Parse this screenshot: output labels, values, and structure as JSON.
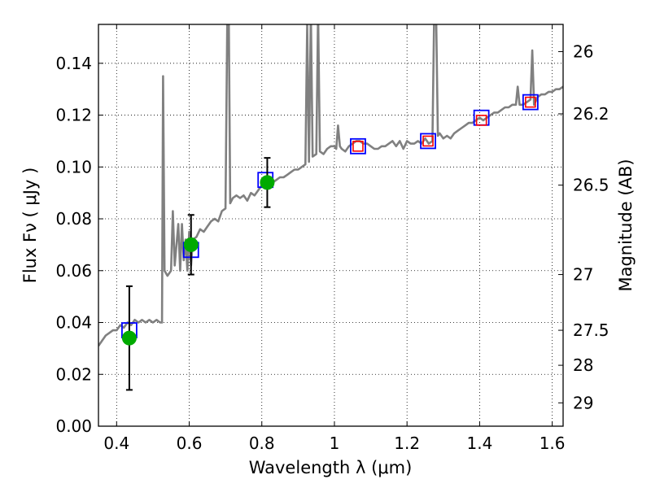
{
  "chart_data": {
    "type": "line",
    "xlabel": "Wavelength  λ (μm)",
    "ylabel": "Flux  Fν  ( μJy )",
    "y2label": "Magnitude (AB)",
    "xlim": [
      0.35,
      1.63
    ],
    "ylim": [
      0.0,
      0.155
    ],
    "grid": true,
    "x_ticks": [
      0.4,
      0.6,
      0.8,
      1.0,
      1.2,
      1.4,
      1.6
    ],
    "x_tick_labels": [
      "0.4",
      "0.6",
      "0.8",
      "1",
      "1.2",
      "1.4",
      "1.6"
    ],
    "y_ticks": [
      0.0,
      0.02,
      0.04,
      0.06,
      0.08,
      0.1,
      0.12,
      0.14
    ],
    "y_tick_labels": [
      "0.00",
      "0.02",
      "0.04",
      "0.06",
      "0.08",
      "0.10",
      "0.12",
      "0.14"
    ],
    "right_ticks": [
      {
        "flux": 0.1445,
        "label": "26"
      },
      {
        "flux": 0.1205,
        "label": "26.2"
      },
      {
        "flux": 0.093,
        "label": "26.5"
      },
      {
        "flux": 0.0585,
        "label": "27"
      },
      {
        "flux": 0.037,
        "label": "27.5"
      },
      {
        "flux": 0.0235,
        "label": "28"
      },
      {
        "flux": 0.009,
        "label": "29"
      }
    ],
    "series": [
      {
        "kind": "spectrum",
        "color": "#808080",
        "points": [
          [
            0.35,
            0.031
          ],
          [
            0.36,
            0.033
          ],
          [
            0.37,
            0.035
          ],
          [
            0.38,
            0.036
          ],
          [
            0.39,
            0.037
          ],
          [
            0.4,
            0.037
          ],
          [
            0.41,
            0.039
          ],
          [
            0.42,
            0.038
          ],
          [
            0.43,
            0.04
          ],
          [
            0.44,
            0.039
          ],
          [
            0.45,
            0.041
          ],
          [
            0.46,
            0.04
          ],
          [
            0.47,
            0.041
          ],
          [
            0.48,
            0.04
          ],
          [
            0.49,
            0.041
          ],
          [
            0.5,
            0.04
          ],
          [
            0.51,
            0.041
          ],
          [
            0.52,
            0.04
          ],
          [
            0.525,
            0.04
          ],
          [
            0.528,
            0.135
          ],
          [
            0.532,
            0.06
          ],
          [
            0.54,
            0.058
          ],
          [
            0.55,
            0.06
          ],
          [
            0.555,
            0.083
          ],
          [
            0.56,
            0.062
          ],
          [
            0.57,
            0.078
          ],
          [
            0.575,
            0.06
          ],
          [
            0.58,
            0.078
          ],
          [
            0.585,
            0.064
          ],
          [
            0.59,
            0.072
          ],
          [
            0.595,
            0.06
          ],
          [
            0.6,
            0.075
          ],
          [
            0.605,
            0.062
          ],
          [
            0.61,
            0.072
          ],
          [
            0.62,
            0.073
          ],
          [
            0.63,
            0.076
          ],
          [
            0.64,
            0.075
          ],
          [
            0.65,
            0.077
          ],
          [
            0.66,
            0.079
          ],
          [
            0.67,
            0.08
          ],
          [
            0.68,
            0.079
          ],
          [
            0.69,
            0.083
          ],
          [
            0.7,
            0.084
          ],
          [
            0.705,
            0.16
          ],
          [
            0.709,
            0.16
          ],
          [
            0.713,
            0.086
          ],
          [
            0.72,
            0.088
          ],
          [
            0.73,
            0.089
          ],
          [
            0.74,
            0.088
          ],
          [
            0.75,
            0.089
          ],
          [
            0.76,
            0.087
          ],
          [
            0.77,
            0.09
          ],
          [
            0.78,
            0.089
          ],
          [
            0.79,
            0.091
          ],
          [
            0.8,
            0.093
          ],
          [
            0.81,
            0.094
          ],
          [
            0.82,
            0.093
          ],
          [
            0.83,
            0.094
          ],
          [
            0.84,
            0.095
          ],
          [
            0.85,
            0.096
          ],
          [
            0.86,
            0.096
          ],
          [
            0.87,
            0.097
          ],
          [
            0.88,
            0.098
          ],
          [
            0.89,
            0.099
          ],
          [
            0.9,
            0.099
          ],
          [
            0.91,
            0.1
          ],
          [
            0.92,
            0.101
          ],
          [
            0.925,
            0.155
          ],
          [
            0.93,
            0.102
          ],
          [
            0.935,
            0.16
          ],
          [
            0.94,
            0.104
          ],
          [
            0.95,
            0.105
          ],
          [
            0.955,
            0.16
          ],
          [
            0.96,
            0.106
          ],
          [
            0.97,
            0.105
          ],
          [
            0.98,
            0.107
          ],
          [
            0.99,
            0.108
          ],
          [
            1.0,
            0.108
          ],
          [
            1.005,
            0.107
          ],
          [
            1.01,
            0.116
          ],
          [
            1.015,
            0.108
          ],
          [
            1.02,
            0.107
          ],
          [
            1.03,
            0.106
          ],
          [
            1.04,
            0.108
          ],
          [
            1.05,
            0.109
          ],
          [
            1.06,
            0.11
          ],
          [
            1.07,
            0.11
          ],
          [
            1.08,
            0.109
          ],
          [
            1.09,
            0.109
          ],
          [
            1.1,
            0.108
          ],
          [
            1.11,
            0.107
          ],
          [
            1.12,
            0.107
          ],
          [
            1.13,
            0.108
          ],
          [
            1.14,
            0.108
          ],
          [
            1.15,
            0.109
          ],
          [
            1.16,
            0.11
          ],
          [
            1.17,
            0.108
          ],
          [
            1.18,
            0.11
          ],
          [
            1.19,
            0.107
          ],
          [
            1.2,
            0.11
          ],
          [
            1.21,
            0.109
          ],
          [
            1.22,
            0.109
          ],
          [
            1.23,
            0.11
          ],
          [
            1.24,
            0.109
          ],
          [
            1.25,
            0.111
          ],
          [
            1.26,
            0.109
          ],
          [
            1.27,
            0.11
          ],
          [
            1.275,
            0.16
          ],
          [
            1.28,
            0.16
          ],
          [
            1.285,
            0.112
          ],
          [
            1.29,
            0.113
          ],
          [
            1.3,
            0.111
          ],
          [
            1.31,
            0.112
          ],
          [
            1.32,
            0.111
          ],
          [
            1.33,
            0.113
          ],
          [
            1.34,
            0.114
          ],
          [
            1.35,
            0.115
          ],
          [
            1.36,
            0.116
          ],
          [
            1.37,
            0.117
          ],
          [
            1.38,
            0.117
          ],
          [
            1.39,
            0.118
          ],
          [
            1.4,
            0.119
          ],
          [
            1.41,
            0.118
          ],
          [
            1.42,
            0.119
          ],
          [
            1.43,
            0.12
          ],
          [
            1.44,
            0.121
          ],
          [
            1.45,
            0.121
          ],
          [
            1.46,
            0.122
          ],
          [
            1.47,
            0.123
          ],
          [
            1.48,
            0.123
          ],
          [
            1.49,
            0.124
          ],
          [
            1.5,
            0.124
          ],
          [
            1.505,
            0.131
          ],
          [
            1.51,
            0.124
          ],
          [
            1.52,
            0.124
          ],
          [
            1.53,
            0.125
          ],
          [
            1.54,
            0.126
          ],
          [
            1.545,
            0.145
          ],
          [
            1.55,
            0.124
          ],
          [
            1.56,
            0.127
          ],
          [
            1.57,
            0.128
          ],
          [
            1.58,
            0.128
          ],
          [
            1.59,
            0.129
          ],
          [
            1.6,
            0.129
          ],
          [
            1.61,
            0.13
          ],
          [
            1.62,
            0.13
          ],
          [
            1.63,
            0.131
          ]
        ]
      },
      {
        "kind": "observed",
        "color": "#00aa00",
        "points": [
          {
            "x": 0.435,
            "y": 0.034,
            "err": 0.02
          },
          {
            "x": 0.605,
            "y": 0.07,
            "err": 0.0115
          },
          {
            "x": 0.815,
            "y": 0.094,
            "err": 0.0095
          }
        ]
      },
      {
        "kind": "model-blue-squares",
        "color": "#0000ff",
        "points": [
          {
            "x": 0.435,
            "y": 0.037
          },
          {
            "x": 0.605,
            "y": 0.068
          },
          {
            "x": 0.81,
            "y": 0.095
          },
          {
            "x": 1.065,
            "y": 0.108
          },
          {
            "x": 1.258,
            "y": 0.11
          },
          {
            "x": 1.405,
            "y": 0.119
          },
          {
            "x": 1.54,
            "y": 0.125
          }
        ]
      },
      {
        "kind": "model-red-squares",
        "color": "#ff0000",
        "points": [
          {
            "x": 1.065,
            "y": 0.108
          },
          {
            "x": 1.258,
            "y": 0.11
          },
          {
            "x": 1.405,
            "y": 0.118
          },
          {
            "x": 1.54,
            "y": 0.125
          }
        ]
      }
    ]
  }
}
